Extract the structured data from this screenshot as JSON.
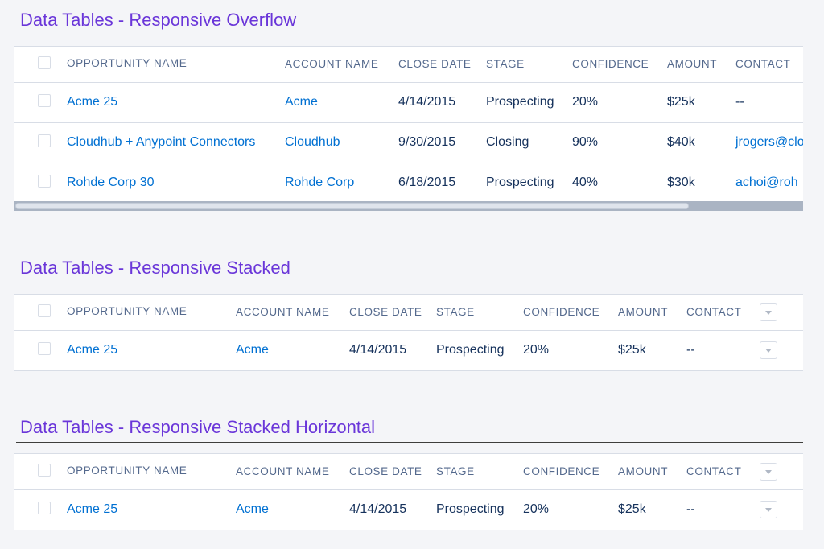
{
  "sections": [
    {
      "title": "Data Tables - Responsive Overflow",
      "headers": {
        "opportunity": "OPPORTUNITY NAME",
        "account": "ACCOUNT NAME",
        "close_date": "CLOSE DATE",
        "stage": "STAGE",
        "confidence": "CONFIDENCE",
        "amount": "AMOUNT",
        "contact": "CONTACT"
      },
      "rows": [
        {
          "opportunity": "Acme 25",
          "account": "Acme",
          "close_date": "4/14/2015",
          "stage": "Prospecting",
          "confidence": "20%",
          "amount": "$25k",
          "contact": "--"
        },
        {
          "opportunity": "Cloudhub + Anypoint Connectors",
          "account": "Cloudhub",
          "close_date": "9/30/2015",
          "stage": "Closing",
          "confidence": "90%",
          "amount": "$40k",
          "contact": "jrogers@clo"
        },
        {
          "opportunity": "Rohde Corp 30",
          "account": "Rohde Corp",
          "close_date": "6/18/2015",
          "stage": "Prospecting",
          "confidence": "40%",
          "amount": "$30k",
          "contact": "achoi@roh"
        }
      ]
    },
    {
      "title": "Data Tables - Responsive Stacked",
      "headers": {
        "opportunity": "OPPORTUNITY NAME",
        "account": "ACCOUNT NAME",
        "close_date": "CLOSE DATE",
        "stage": "STAGE",
        "confidence": "CONFIDENCE",
        "amount": "AMOUNT",
        "contact": "CONTACT"
      },
      "rows": [
        {
          "opportunity": "Acme 25",
          "account": "Acme",
          "close_date": "4/14/2015",
          "stage": "Prospecting",
          "confidence": "20%",
          "amount": "$25k",
          "contact": "--"
        }
      ]
    },
    {
      "title": "Data Tables - Responsive Stacked Horizontal",
      "headers": {
        "opportunity": "OPPORTUNITY NAME",
        "account": "ACCOUNT NAME",
        "close_date": "CLOSE DATE",
        "stage": "STAGE",
        "confidence": "CONFIDENCE",
        "amount": "AMOUNT",
        "contact": "CONTACT"
      },
      "rows": [
        {
          "opportunity": "Acme 25",
          "account": "Acme",
          "close_date": "4/14/2015",
          "stage": "Prospecting",
          "confidence": "20%",
          "amount": "$25k",
          "contact": "--"
        }
      ]
    }
  ],
  "icons": {
    "checkbox": "checkbox-icon",
    "row_menu": "chevron-down-icon"
  },
  "colors": {
    "title": "#6a36d9",
    "link": "#0070d2",
    "header_text": "#54698d",
    "body_text": "#16325c",
    "background": "#f4f5f8"
  },
  "scroll": {
    "horizontal_position_fraction": 0.0,
    "visible_fraction": 0.86
  }
}
